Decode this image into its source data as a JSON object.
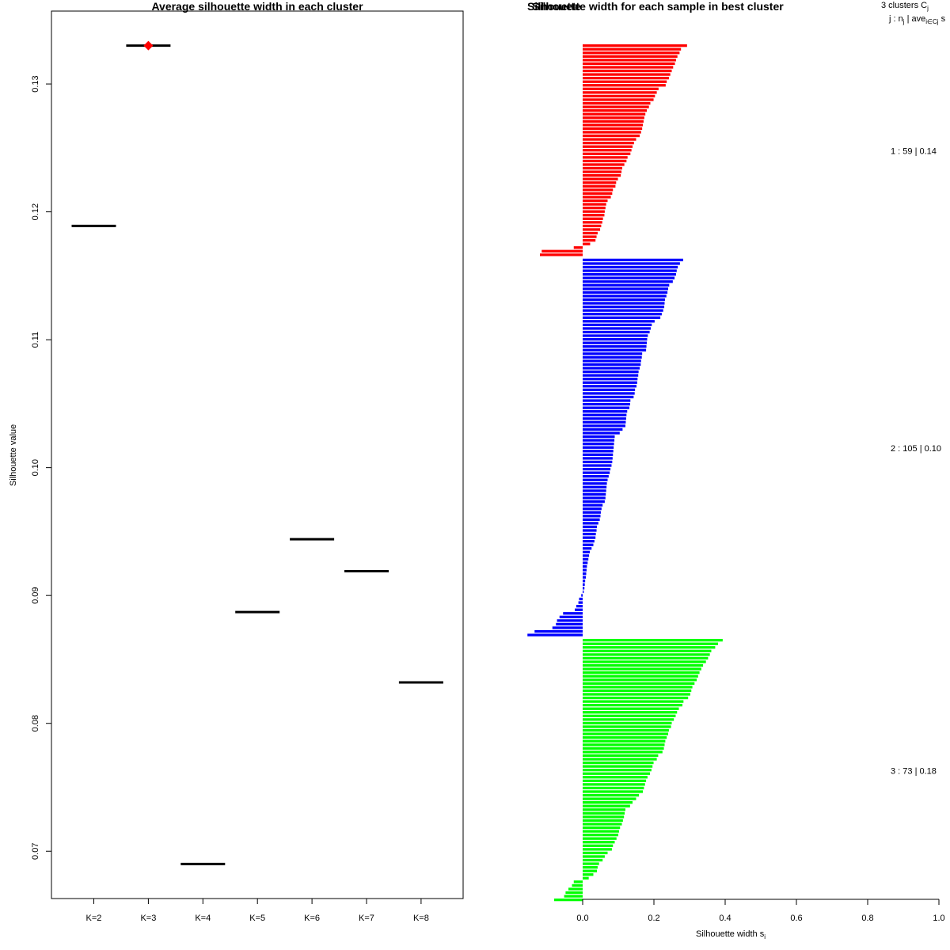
{
  "chart_data": [
    {
      "type": "scatter",
      "title": "Average silhouette width in each cluster",
      "xlabel": "",
      "ylabel": "Silhouette value",
      "categories": [
        "K=2",
        "K=3",
        "K=4",
        "K=5",
        "K=6",
        "K=7",
        "K=8"
      ],
      "values": [
        0.1189,
        0.133,
        0.069,
        0.0887,
        0.0944,
        0.0919,
        0.0832
      ],
      "highlight_index": 1,
      "highlight_color": "#ff0000",
      "mark_color": "#000000",
      "ylim": [
        0.0663,
        0.1357
      ],
      "yticks": [
        0.07,
        0.08,
        0.09,
        0.1,
        0.11,
        0.12,
        0.13
      ],
      "ytick_labels": [
        "0.07",
        "0.08",
        "0.09",
        "0.10",
        "0.11",
        "0.12",
        "0.13"
      ]
    },
    {
      "type": "bar",
      "orientation": "horizontal",
      "title": "Silhouette width for each sample in best cluster",
      "title_overlap": "Silhouette",
      "xlabel": "Silhouette width s",
      "xlabel_sub": "i",
      "xlim": [
        0.0,
        1.0
      ],
      "xticks": [
        0.0,
        0.2,
        0.4,
        0.6,
        0.8,
        1.0
      ],
      "xtick_labels": [
        "0.0",
        "0.2",
        "0.4",
        "0.6",
        "0.8",
        "1.0"
      ],
      "legend": {
        "line1_prefix": "3 clusters  C",
        "line1_sub": "j",
        "line2_prefix": "j :  n",
        "line2_sub1": "j",
        "line2_mid": " | ave",
        "line2_sub2": "i∈Cj",
        "line2_suffix": " s"
      },
      "clusters": [
        {
          "id": 1,
          "n": 59,
          "avg": "0.14",
          "label": "1 :  59  |  0.14",
          "color": "#ff0000",
          "values": [
            0.293,
            0.276,
            0.272,
            0.266,
            0.262,
            0.259,
            0.254,
            0.25,
            0.246,
            0.242,
            0.236,
            0.233,
            0.213,
            0.208,
            0.203,
            0.199,
            0.19,
            0.186,
            0.18,
            0.176,
            0.173,
            0.171,
            0.169,
            0.167,
            0.164,
            0.16,
            0.15,
            0.144,
            0.14,
            0.137,
            0.134,
            0.126,
            0.123,
            0.117,
            0.111,
            0.109,
            0.107,
            0.099,
            0.094,
            0.092,
            0.085,
            0.083,
            0.079,
            0.07,
            0.066,
            0.064,
            0.062,
            0.061,
            0.057,
            0.055,
            0.052,
            0.049,
            0.042,
            0.039,
            0.036,
            0.021,
            -0.025,
            -0.115,
            -0.12
          ]
        },
        {
          "id": 2,
          "n": 105,
          "avg": "0.10",
          "label": "2 :  105  |  0.10",
          "color": "#0000ff",
          "values": [
            0.282,
            0.273,
            0.267,
            0.264,
            0.262,
            0.258,
            0.253,
            0.243,
            0.24,
            0.238,
            0.235,
            0.231,
            0.23,
            0.229,
            0.226,
            0.222,
            0.218,
            0.202,
            0.194,
            0.191,
            0.188,
            0.183,
            0.181,
            0.18,
            0.179,
            0.178,
            0.167,
            0.166,
            0.164,
            0.163,
            0.16,
            0.157,
            0.156,
            0.154,
            0.153,
            0.151,
            0.147,
            0.146,
            0.143,
            0.134,
            0.133,
            0.131,
            0.125,
            0.123,
            0.122,
            0.121,
            0.12,
            0.112,
            0.104,
            0.09,
            0.089,
            0.088,
            0.087,
            0.086,
            0.085,
            0.084,
            0.083,
            0.081,
            0.078,
            0.076,
            0.073,
            0.07,
            0.068,
            0.067,
            0.066,
            0.065,
            0.064,
            0.062,
            0.056,
            0.053,
            0.051,
            0.05,
            0.048,
            0.044,
            0.04,
            0.039,
            0.037,
            0.036,
            0.033,
            0.03,
            0.025,
            0.02,
            0.018,
            0.016,
            0.014,
            0.012,
            0.011,
            0.01,
            0.009,
            0.007,
            0.006,
            0.005,
            0.003,
            -0.004,
            -0.01,
            -0.012,
            -0.018,
            -0.022,
            -0.055,
            -0.065,
            -0.072,
            -0.075,
            -0.085,
            -0.135,
            -0.155
          ]
        },
        {
          "id": 3,
          "n": 73,
          "avg": "0.18",
          "label": "3 :  73  |  0.18",
          "color": "#00ff00",
          "values": [
            0.393,
            0.38,
            0.372,
            0.361,
            0.357,
            0.352,
            0.346,
            0.338,
            0.333,
            0.328,
            0.324,
            0.32,
            0.314,
            0.308,
            0.305,
            0.302,
            0.296,
            0.283,
            0.28,
            0.27,
            0.265,
            0.261,
            0.256,
            0.25,
            0.248,
            0.242,
            0.24,
            0.236,
            0.232,
            0.23,
            0.228,
            0.224,
            0.212,
            0.208,
            0.199,
            0.196,
            0.193,
            0.189,
            0.182,
            0.178,
            0.175,
            0.172,
            0.169,
            0.158,
            0.15,
            0.14,
            0.133,
            0.12,
            0.118,
            0.116,
            0.113,
            0.11,
            0.105,
            0.102,
            0.1,
            0.095,
            0.09,
            0.085,
            0.082,
            0.07,
            0.062,
            0.056,
            0.046,
            0.042,
            0.04,
            0.03,
            0.017,
            -0.025,
            -0.03,
            -0.04,
            -0.048,
            -0.052,
            -0.08
          ]
        }
      ]
    }
  ]
}
